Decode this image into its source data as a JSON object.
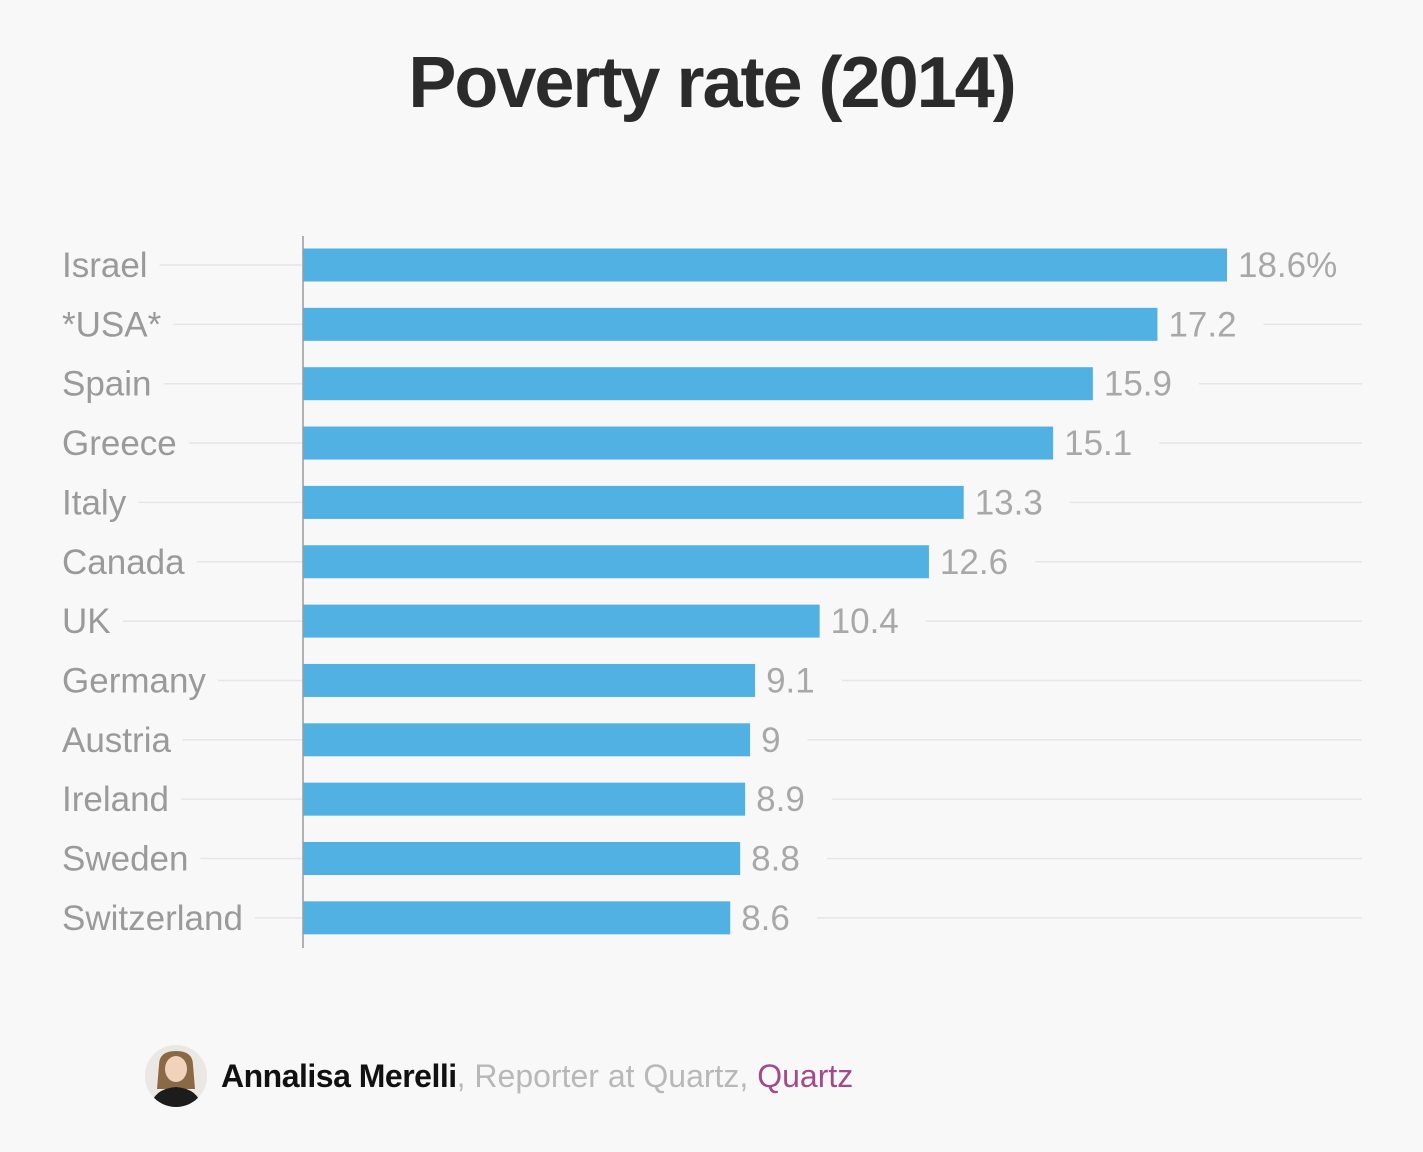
{
  "chart_data": {
    "type": "bar",
    "orientation": "horizontal",
    "title": "Poverty rate (2014)",
    "xlabel": "",
    "ylabel": "",
    "xlim": [
      0,
      18.6
    ],
    "grid": true,
    "categories": [
      "Israel",
      "*USA*",
      "Spain",
      "Greece",
      "Italy",
      "Canada",
      "UK",
      "Germany",
      "Austria",
      "Ireland",
      "Sweden",
      "Switzerland"
    ],
    "values": [
      18.6,
      17.2,
      15.9,
      15.1,
      13.3,
      12.6,
      10.4,
      9.1,
      9,
      8.9,
      8.8,
      8.6
    ],
    "value_labels": [
      "18.6%",
      "17.2",
      "15.9",
      "15.1",
      "13.3",
      "12.6",
      "10.4",
      "9.1",
      "9",
      "8.9",
      "8.8",
      "8.6"
    ],
    "colors": {
      "bar": "#52b1e3",
      "category_label": "#9a9a9a",
      "value_label": "#a8a8a8",
      "gridline": "#e6e6e6",
      "axis": "#9a9a9a"
    }
  },
  "byline": {
    "author": "Annalisa Merelli",
    "separator": ",",
    "role": " Reporter at Quartz,",
    "publication": "Quartz",
    "avatar_icon": "person-portrait-icon"
  }
}
